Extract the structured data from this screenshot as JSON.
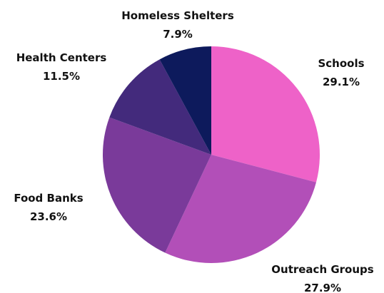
{
  "chart_data": {
    "type": "pie",
    "title": "",
    "slices": [
      {
        "label": "Schools",
        "value": 29.1,
        "display": "29.1%",
        "color": "#EE62C8"
      },
      {
        "label": "Outreach Groups",
        "value": 27.9,
        "display": "27.9%",
        "color": "#B24FB8"
      },
      {
        "label": "Food Banks",
        "value": 23.6,
        "display": "23.6%",
        "color": "#7A3A9A"
      },
      {
        "label": "Health Centers",
        "value": 11.5,
        "display": "11.5%",
        "color": "#432A7C"
      },
      {
        "label": "Homeless Shelters",
        "value": 7.9,
        "display": "7.9%",
        "color": "#0D1A5C"
      }
    ],
    "start_angle_deg": 0,
    "direction": "clockwise",
    "legend": false
  }
}
